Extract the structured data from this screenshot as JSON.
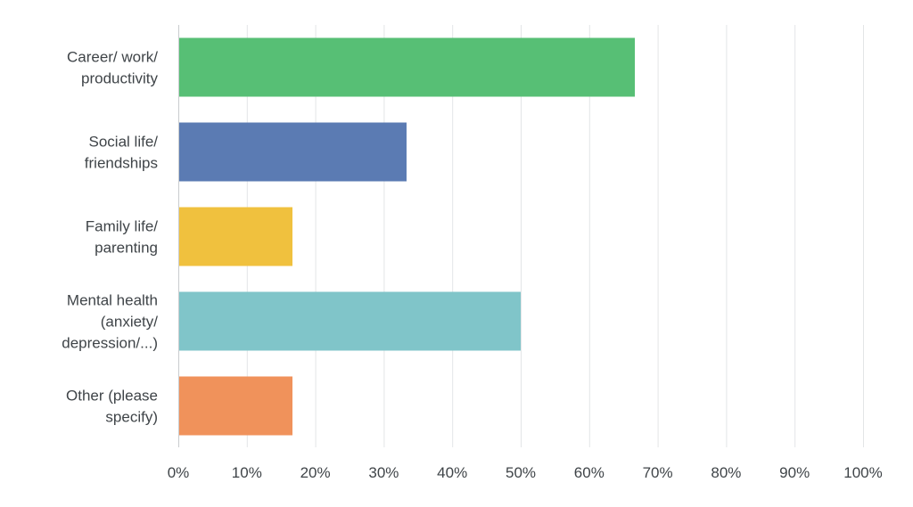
{
  "chart_data": {
    "type": "bar",
    "orientation": "horizontal",
    "title": "",
    "xlabel": "",
    "ylabel": "",
    "categories": [
      [
        "Career/ work/",
        "productivity"
      ],
      [
        "Social life/",
        "friendships"
      ],
      [
        "Family life/",
        "parenting"
      ],
      [
        "Mental health",
        "(anxiety/",
        "depression/...)"
      ],
      [
        "Other (please",
        "specify)"
      ]
    ],
    "values": [
      66.67,
      33.33,
      16.67,
      50.0,
      16.67
    ],
    "colors": [
      "#57bf75",
      "#5b7bb3",
      "#f0c13e",
      "#80c5c9",
      "#f0925b"
    ],
    "xlim": [
      0,
      100
    ],
    "xticks": [
      "0%",
      "10%",
      "20%",
      "30%",
      "40%",
      "50%",
      "60%",
      "70%",
      "80%",
      "90%",
      "100%"
    ],
    "grid": true
  }
}
